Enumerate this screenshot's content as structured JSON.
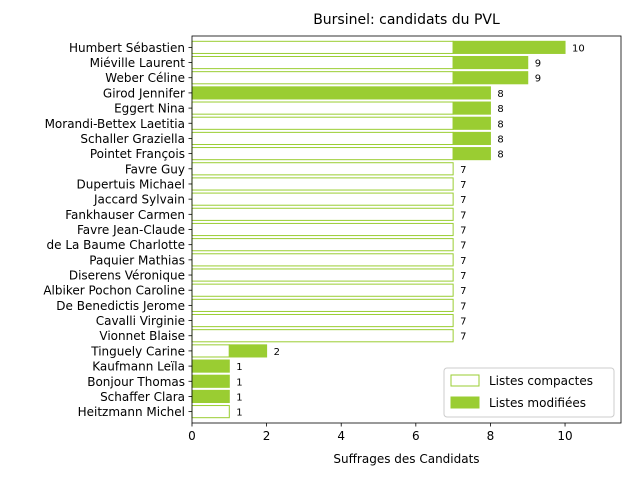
{
  "chart_data": {
    "type": "bar",
    "orientation": "horizontal",
    "stacked": true,
    "title": "Bursinel: candidats du PVL",
    "xlabel": "Suffrages des Candidats",
    "ylabel": "",
    "xlim": [
      0,
      11.5
    ],
    "xticks": [
      0,
      2,
      4,
      6,
      8,
      10
    ],
    "grid": false,
    "legend_position": "lower-right",
    "colors": {
      "accent": "#9acd32",
      "compact_fill": "#ffffff"
    },
    "categories": [
      "Humbert Sébastien",
      "Miéville Laurent",
      "Weber Céline",
      "Girod Jennifer",
      "Eggert Nina",
      "Morandi-Bettex Laetitia",
      "Schaller Graziella",
      "Pointet François",
      "Favre Guy",
      "Dupertuis Michael",
      "Jaccard Sylvain",
      "Fankhauser Carmen",
      "Favre Jean-Claude",
      "de La Baume Charlotte",
      "Paquier Mathias",
      "Diserens Véronique",
      "Albiker Pochon Caroline",
      "De Benedictis Jerome",
      "Cavalli Virginie",
      "Vionnet Blaise",
      "Tinguely Carine",
      "Kaufmann Leïla",
      "Bonjour Thomas",
      "Schaffer Clara",
      "Heitzmann Michel"
    ],
    "series": [
      {
        "name": "Listes compactes",
        "values": [
          7,
          7,
          7,
          0,
          7,
          7,
          7,
          7,
          7,
          7,
          7,
          7,
          7,
          7,
          7,
          7,
          7,
          7,
          7,
          7,
          1,
          0,
          0,
          0,
          1
        ]
      },
      {
        "name": "Listes modifiées",
        "values": [
          3,
          2,
          2,
          8,
          1,
          1,
          1,
          1,
          0,
          0,
          0,
          0,
          0,
          0,
          0,
          0,
          0,
          0,
          0,
          0,
          1,
          1,
          1,
          1,
          0
        ]
      }
    ],
    "totals": [
      10,
      9,
      9,
      8,
      8,
      8,
      8,
      8,
      7,
      7,
      7,
      7,
      7,
      7,
      7,
      7,
      7,
      7,
      7,
      7,
      2,
      1,
      1,
      1,
      1
    ]
  }
}
